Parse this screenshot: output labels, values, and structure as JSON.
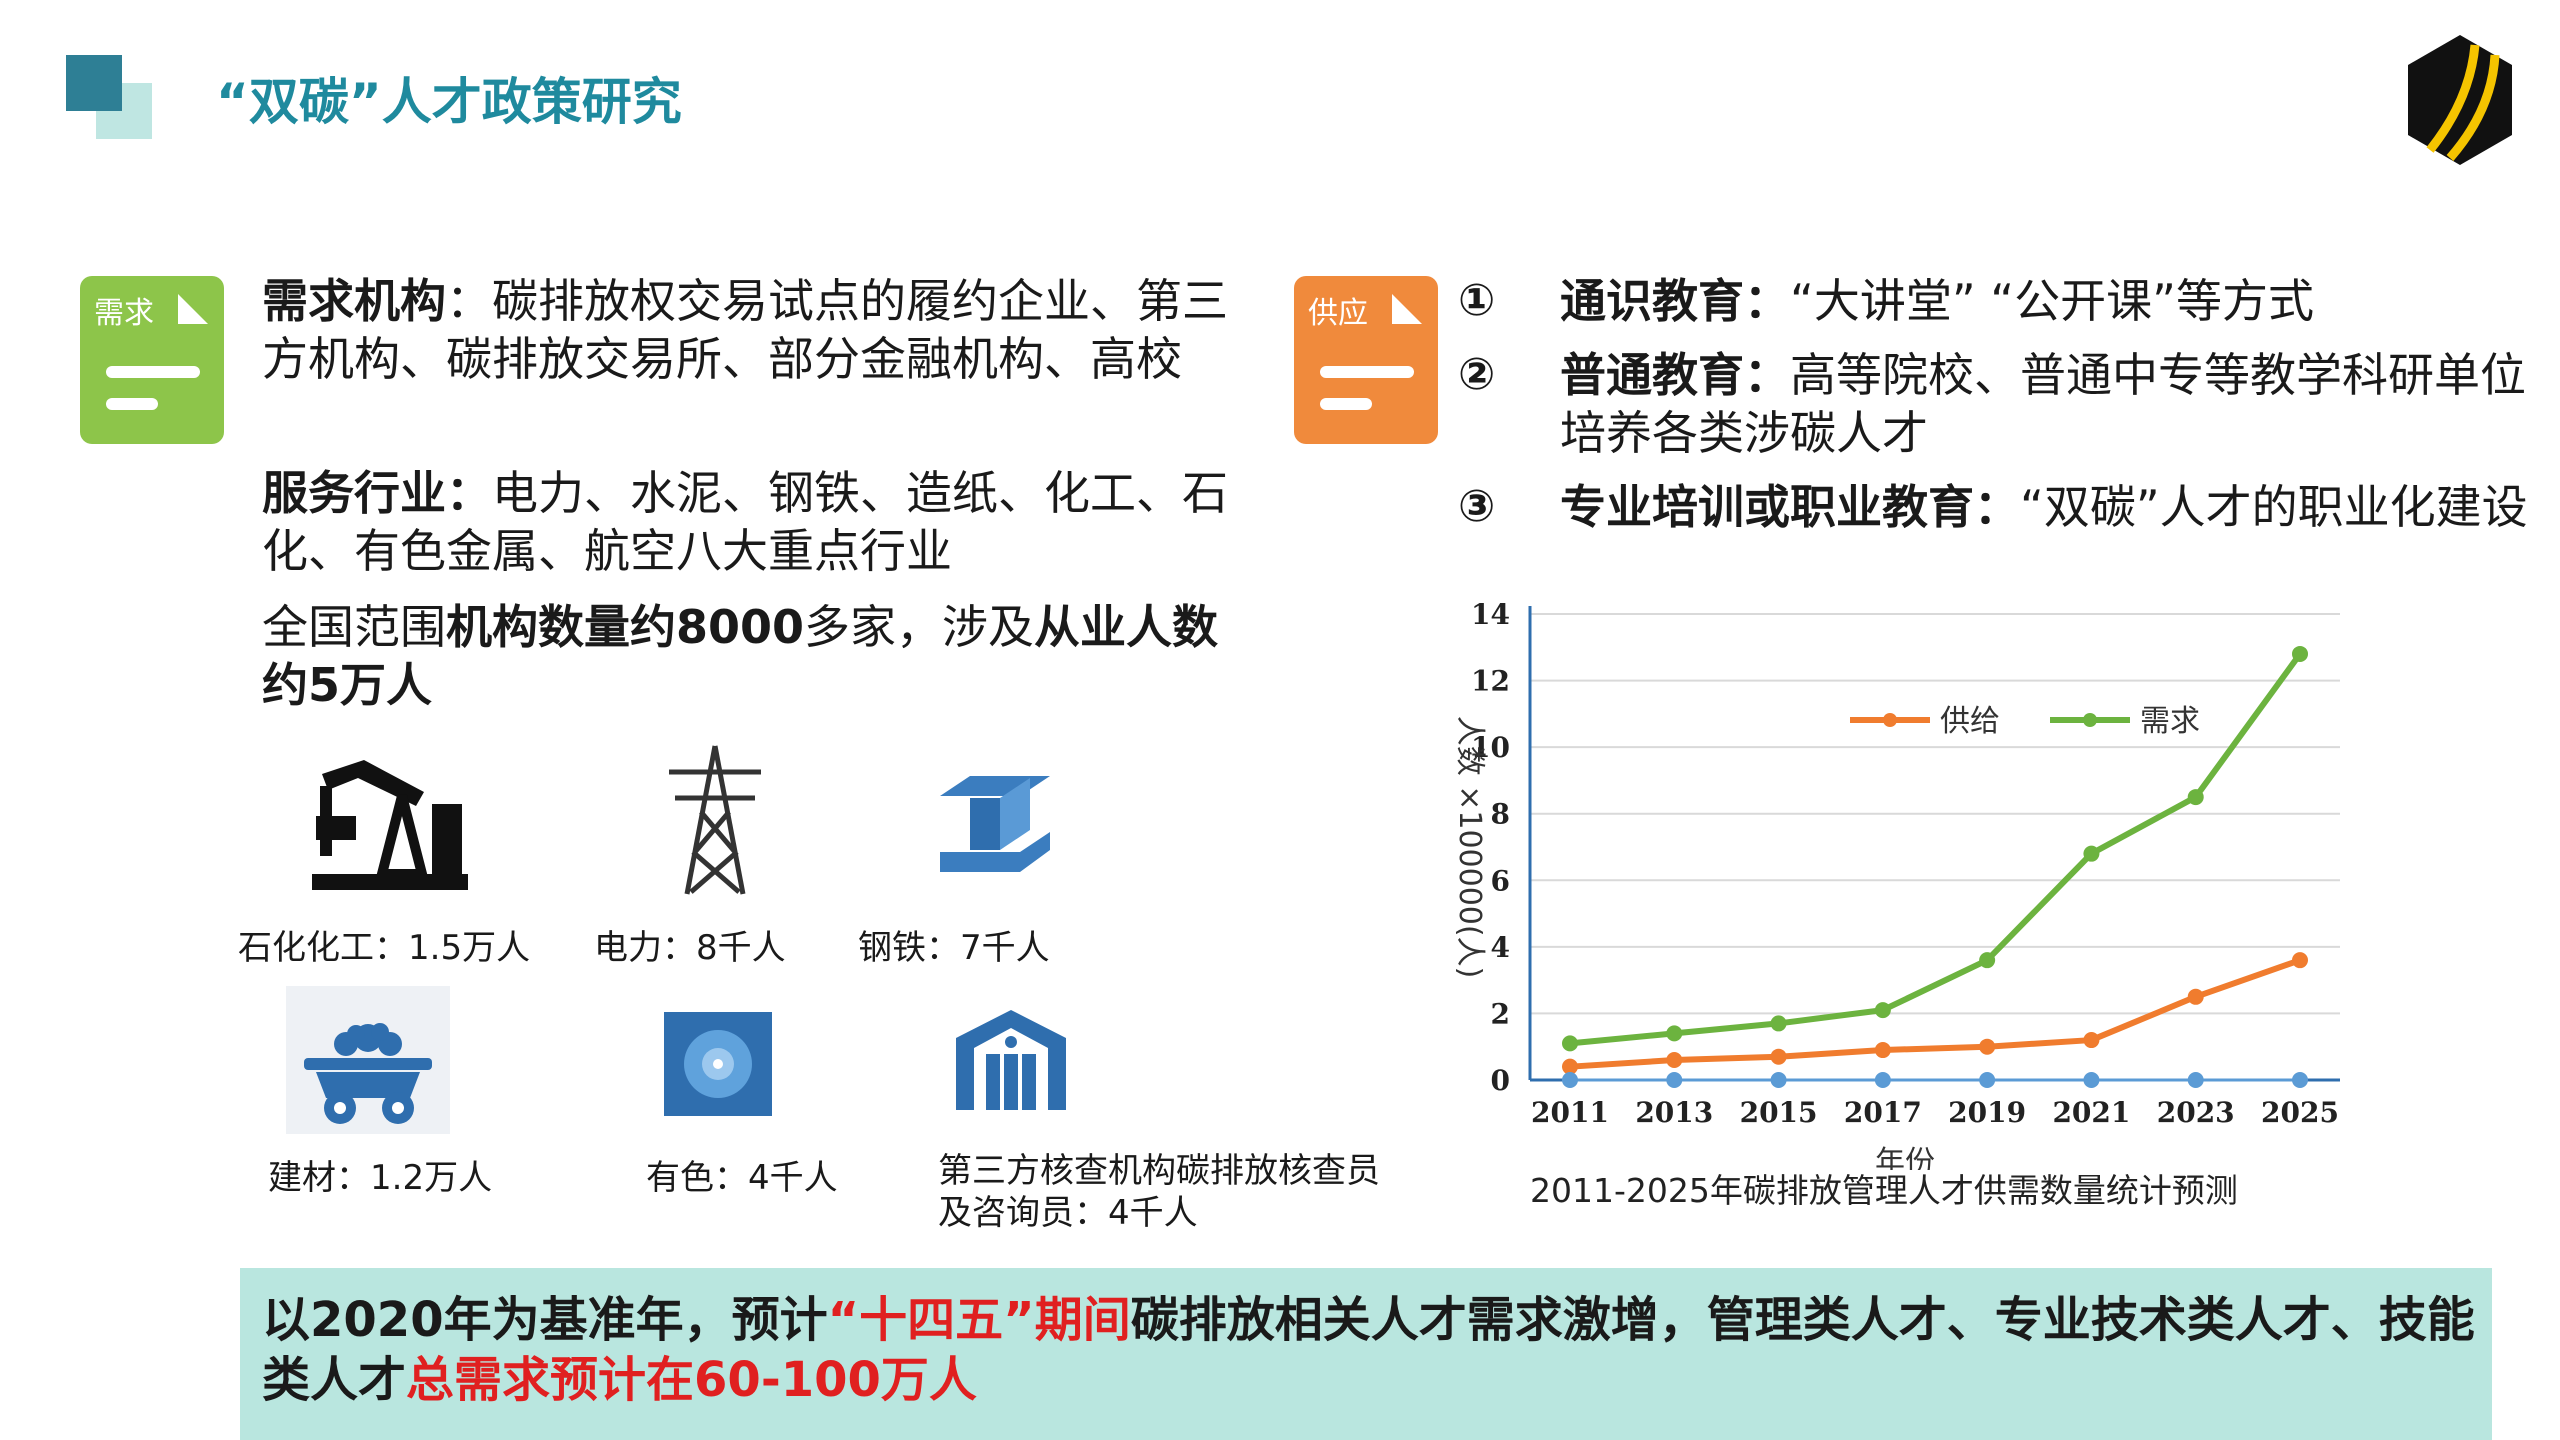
{
  "header": {
    "title": "“双碳”人才政策研究"
  },
  "left": {
    "doc_label": "需求",
    "p1_bold": "需求机构",
    "p1_rest": "：碳排放权交易试点的履约企业、第三方机构、碳排放交易所、部分金融机构、高校",
    "p2_bold": "服务行业：",
    "p2_rest": "电力、水泥、钢铁、造纸、化工、石化、有色金属、航空八大重点行业",
    "p3_a": "全国范围",
    "p3_b": "机构数量约8000",
    "p3_c": "多家，涉及",
    "p3_d": "从业人数约5万人",
    "sectors": [
      {
        "icon": "oil-pump-icon",
        "label": "石化化工：1.5万人"
      },
      {
        "icon": "power-tower-icon",
        "label": "电力：8千人"
      },
      {
        "icon": "steel-beam-icon",
        "label": "钢铁：7千人"
      },
      {
        "icon": "mine-cart-icon",
        "label": "建材：1.2万人"
      },
      {
        "icon": "metal-icon",
        "label": "有色：4千人"
      },
      {
        "icon": "institution-icon",
        "label": "第三方核查机构碳排放核查员及咨询员：4千人"
      }
    ]
  },
  "right": {
    "doc_label": "供应",
    "items": [
      {
        "num": "①",
        "bold": "通识教育：",
        "rest": "“大讲堂” “公开课”等方式"
      },
      {
        "num": "②",
        "bold": "普通教育：",
        "rest": "高等院校、普通中专等教学科研单位培养各类涉碳人才"
      },
      {
        "num": "③",
        "bold": "专业培训或职业教育：",
        "rest": "“双碳”人才的职业化建设"
      }
    ]
  },
  "chart_data": {
    "type": "line",
    "caption": "2011-2025年碳排放管理人才供需数量统计预测",
    "xlabel": "年份",
    "ylabel": "人数 ×100000(人)",
    "x": [
      2011,
      2013,
      2015,
      2017,
      2019,
      2021,
      2023,
      2025
    ],
    "ylim": [
      0,
      14
    ],
    "yticks": [
      0,
      2,
      4,
      6,
      8,
      10,
      12,
      14
    ],
    "grid": true,
    "legend": "top-center",
    "series": [
      {
        "name": "供给",
        "color": "#f07c2e",
        "values": [
          0.4,
          0.6,
          0.7,
          0.9,
          1.0,
          1.2,
          2.5,
          3.6
        ]
      },
      {
        "name": "需求",
        "color": "#6cb33f",
        "values": [
          1.1,
          1.4,
          1.7,
          2.1,
          3.6,
          6.8,
          8.5,
          12.8
        ]
      },
      {
        "name": "",
        "color": "#5b9bd5",
        "values": [
          0,
          0,
          0,
          0,
          0,
          0,
          0,
          0
        ]
      }
    ]
  },
  "banner": {
    "a": "以2020年为基准年，预计",
    "b": "“十四五”期间",
    "c": "碳排放相关人才需求激增，管理类人才、专业技术类人才、技能类人才",
    "d": "总需求预计在60-100万人"
  },
  "colors": {
    "teal": "#1f8a9e",
    "green_doc": "#8dc54a",
    "orange_doc": "#f08a3c",
    "icon_blue": "#2f6eae"
  }
}
